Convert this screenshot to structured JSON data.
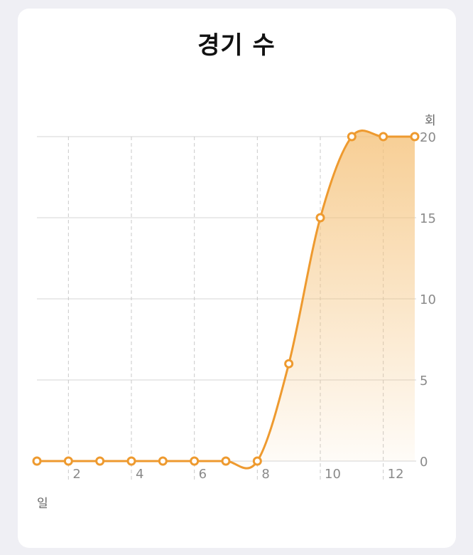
{
  "title": "경기 수",
  "chart_data": {
    "type": "area",
    "title": "경기 수",
    "xlabel": "일",
    "ylabel": "회",
    "x": [
      1,
      2,
      3,
      4,
      5,
      6,
      7,
      8,
      9,
      10,
      11,
      12,
      13
    ],
    "values": [
      0,
      0,
      0,
      0,
      0,
      0,
      0,
      0,
      6,
      15,
      20,
      20,
      20
    ],
    "xlim": [
      1,
      13
    ],
    "ylim": [
      0,
      20
    ],
    "x_ticks": [
      "2",
      "4",
      "6",
      "8",
      "10",
      "12"
    ],
    "x_tick_values": [
      2,
      4,
      6,
      8,
      10,
      12
    ],
    "y_ticks": [
      "0",
      "5",
      "10",
      "15",
      "20"
    ],
    "y_tick_values": [
      0,
      5,
      10,
      15,
      20
    ],
    "grid": true,
    "y_axis_position": "right",
    "colors": {
      "line": "#ee9a2f",
      "fill": "#f5c88a",
      "grid": "#d4d4d4",
      "dashed_grid": "#c9c9c9",
      "label": "#8a8a8a"
    }
  }
}
